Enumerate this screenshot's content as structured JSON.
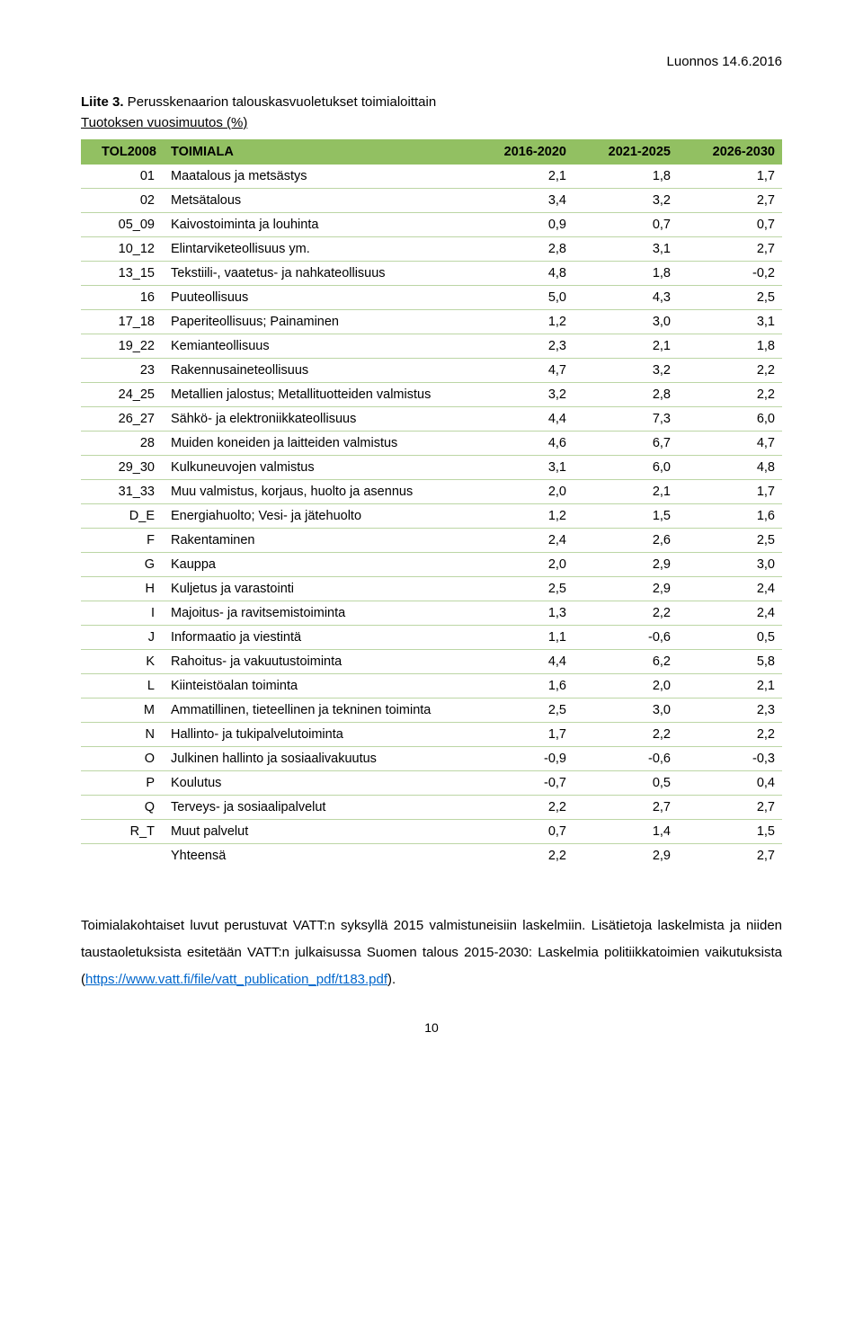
{
  "header_date": "Luonnos 14.6.2016",
  "title_bold": "Liite 3.",
  "title_rest": " Perusskenaarion talouskasvuoletukset toimialoittain",
  "subtitle": "Tuotoksen vuosimuutos (%)",
  "columns": {
    "code": "TOL2008",
    "label": "TOIMIALA",
    "c1": "2016-2020",
    "c2": "2021-2025",
    "c3": "2026-2030"
  },
  "rows": [
    {
      "code": "01",
      "label": "Maatalous ja metsästys",
      "v": [
        "2,1",
        "1,8",
        "1,7"
      ]
    },
    {
      "code": "02",
      "label": "Metsätalous",
      "v": [
        "3,4",
        "3,2",
        "2,7"
      ]
    },
    {
      "code": "05_09",
      "label": "Kaivostoiminta ja louhinta",
      "v": [
        "0,9",
        "0,7",
        "0,7"
      ]
    },
    {
      "code": "10_12",
      "label": "Elintarviketeollisuus ym.",
      "v": [
        "2,8",
        "3,1",
        "2,7"
      ]
    },
    {
      "code": "13_15",
      "label": "Tekstiili-, vaatetus- ja nahkateollisuus",
      "v": [
        "4,8",
        "1,8",
        "-0,2"
      ]
    },
    {
      "code": "16",
      "label": "Puuteollisuus",
      "v": [
        "5,0",
        "4,3",
        "2,5"
      ]
    },
    {
      "code": "17_18",
      "label": "Paperiteollisuus; Painaminen",
      "v": [
        "1,2",
        "3,0",
        "3,1"
      ]
    },
    {
      "code": "19_22",
      "label": "Kemianteollisuus",
      "v": [
        "2,3",
        "2,1",
        "1,8"
      ]
    },
    {
      "code": "23",
      "label": "Rakennusaineteollisuus",
      "v": [
        "4,7",
        "3,2",
        "2,2"
      ]
    },
    {
      "code": "24_25",
      "label": "Metallien jalostus; Metallituotteiden valmistus",
      "v": [
        "3,2",
        "2,8",
        "2,2"
      ]
    },
    {
      "code": "26_27",
      "label": "Sähkö- ja elektroniikkateollisuus",
      "v": [
        "4,4",
        "7,3",
        "6,0"
      ]
    },
    {
      "code": "28",
      "label": "Muiden koneiden ja laitteiden valmistus",
      "v": [
        "4,6",
        "6,7",
        "4,7"
      ]
    },
    {
      "code": "29_30",
      "label": "Kulkuneuvojen valmistus",
      "v": [
        "3,1",
        "6,0",
        "4,8"
      ]
    },
    {
      "code": "31_33",
      "label": "Muu valmistus, korjaus, huolto ja asennus",
      "v": [
        "2,0",
        "2,1",
        "1,7"
      ]
    },
    {
      "code": "D_E",
      "label": "Energiahuolto; Vesi- ja jätehuolto",
      "v": [
        "1,2",
        "1,5",
        "1,6"
      ]
    },
    {
      "code": "F",
      "label": "Rakentaminen",
      "v": [
        "2,4",
        "2,6",
        "2,5"
      ]
    },
    {
      "code": "G",
      "label": "Kauppa",
      "v": [
        "2,0",
        "2,9",
        "3,0"
      ]
    },
    {
      "code": "H",
      "label": "Kuljetus ja varastointi",
      "v": [
        "2,5",
        "2,9",
        "2,4"
      ]
    },
    {
      "code": "I",
      "label": "Majoitus- ja ravitsemistoiminta",
      "v": [
        "1,3",
        "2,2",
        "2,4"
      ]
    },
    {
      "code": "J",
      "label": "Informaatio ja viestintä",
      "v": [
        "1,1",
        "-0,6",
        "0,5"
      ]
    },
    {
      "code": "K",
      "label": "Rahoitus- ja vakuutustoiminta",
      "v": [
        "4,4",
        "6,2",
        "5,8"
      ]
    },
    {
      "code": "L",
      "label": "Kiinteistöalan toiminta",
      "v": [
        "1,6",
        "2,0",
        "2,1"
      ]
    },
    {
      "code": "M",
      "label": "Ammatillinen, tieteellinen ja tekninen toiminta",
      "v": [
        "2,5",
        "3,0",
        "2,3"
      ]
    },
    {
      "code": "N",
      "label": "Hallinto- ja tukipalvelutoiminta",
      "v": [
        "1,7",
        "2,2",
        "2,2"
      ]
    },
    {
      "code": "O",
      "label": "Julkinen hallinto ja sosiaalivakuutus",
      "v": [
        "-0,9",
        "-0,6",
        "-0,3"
      ]
    },
    {
      "code": "P",
      "label": "Koulutus",
      "v": [
        "-0,7",
        "0,5",
        "0,4"
      ]
    },
    {
      "code": "Q",
      "label": "Terveys- ja sosiaalipalvelut",
      "v": [
        "2,2",
        "2,7",
        "2,7"
      ]
    },
    {
      "code": "R_T",
      "label": "Muut palvelut",
      "v": [
        "0,7",
        "1,4",
        "1,5"
      ]
    },
    {
      "code": "",
      "label": "Yhteensä",
      "v": [
        "2,2",
        "2,9",
        "2,7"
      ]
    }
  ],
  "footnote_parts": {
    "p1": "Toimialakohtaiset luvut perustuvat VATT:n syksyllä 2015 valmistuneisiin laskelmiin. Lisätietoja laskelmista ja niiden taustaoletuksista esitetään VATT:n julkaisussa Suomen talous 2015-2030: Laskelmia politiikkatoimien vaikutuksista (",
    "link_text": "https://www.vatt.fi/file/vatt_publication_pdf/t183.pdf",
    "p2": ")."
  },
  "page_number": "10",
  "colors": {
    "header_bg": "#92c062",
    "row_border": "#bcd6a5",
    "link": "#0066cc"
  }
}
